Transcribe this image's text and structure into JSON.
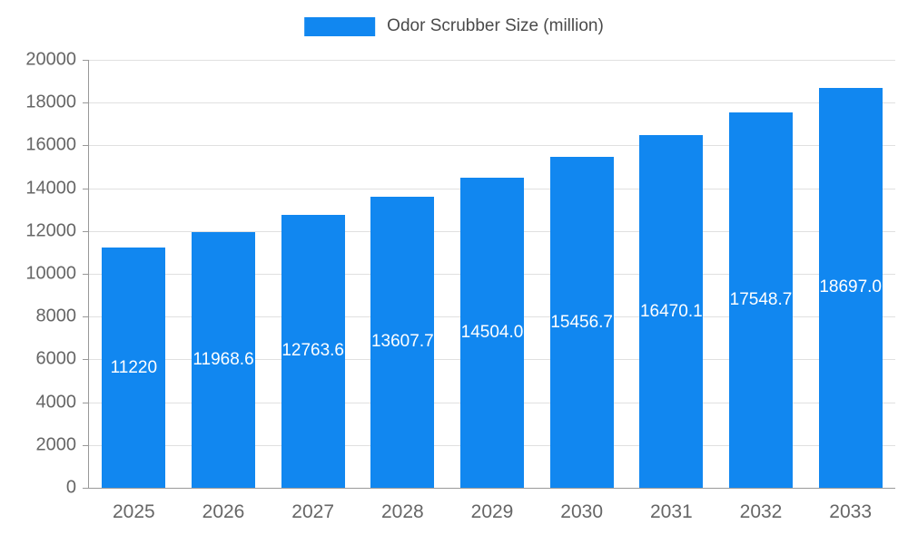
{
  "legend": {
    "label": "Odor Scrubber Size (million)"
  },
  "chart_data": {
    "type": "bar",
    "title": "Odor Scrubber Size (million)",
    "categories": [
      "2025",
      "2026",
      "2027",
      "2028",
      "2029",
      "2030",
      "2031",
      "2032",
      "2033"
    ],
    "values": [
      11220,
      11968.6,
      12763.6,
      13607.7,
      14504.0,
      15456.7,
      16470.1,
      17548.7,
      18697.0
    ],
    "bar_labels": [
      "11220",
      "11968.6",
      "12763.6",
      "13607.7",
      "14504.0",
      "15456.7",
      "16470.1",
      "17548.7",
      "18697.0"
    ],
    "ylim": [
      0,
      20000
    ],
    "yticks": [
      0,
      2000,
      4000,
      6000,
      8000,
      10000,
      12000,
      14000,
      16000,
      18000,
      20000
    ],
    "bar_color": "#1187f0",
    "grid": true,
    "legend_position": "top",
    "xlabel": "",
    "ylabel": ""
  }
}
